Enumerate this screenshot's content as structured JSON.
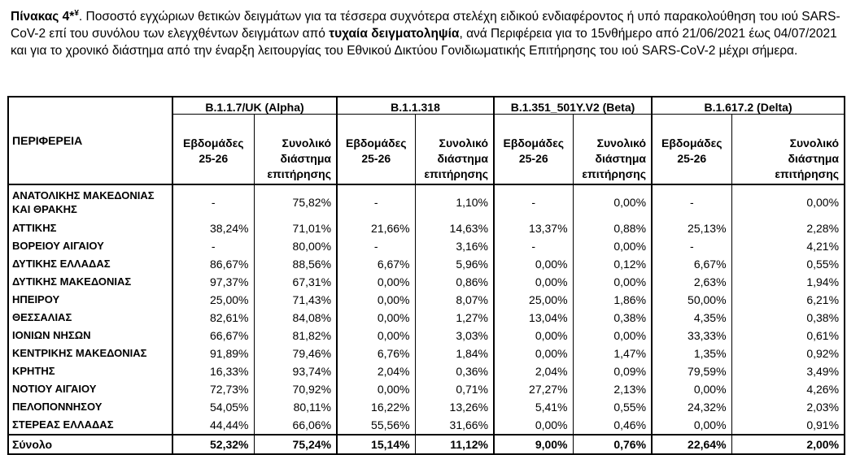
{
  "caption": {
    "label": "Πίνακας 4*",
    "sup": "¥",
    "text_part1": ". Ποσοστό εγχώριων θετικών δειγμάτων για τα τέσσερα συχνότερα στελέχη ειδικού ενδιαφέροντος ή υπό παρακολούθηση του ιού SARS-CoV-2 επί του συνόλου των ελεγχθέντων δειγμάτων από ",
    "bold_phrase": "τυχαία δειγματοληψία",
    "text_part2": ", ανά Περιφέρεια για το 15νθήμερο από 21/06/2021 έως 04/07/2021 και για το χρονικό διάστημα από την έναρξη λειτουργίας του Εθνικού Δικτύου Γονιδιωματικής Επιτήρησης του ιού SARS-CoV-2 μέχρι σήμερα."
  },
  "table": {
    "region_header": "ΠΕΡΙΦΕΡΕΙΑ",
    "variants": [
      "B.1.1.7/UK  (Alpha)",
      "B.1.1.318",
      "B.1.351_501Y.V2 (Beta)",
      "B.1.617.2 (Delta)"
    ],
    "sub_weeks_l1": "Εβδομάδες",
    "sub_weeks_l2": "25-26",
    "sub_total_l1": "Συνολικό",
    "sub_total_l2": "διάστημα",
    "sub_total_l3": "επιτήρησης",
    "rows": [
      {
        "region": "ΑΝΑΤΟΛΙΚΗΣ ΜΑΚΕΔΟΝΙΑΣ ΚΑΙ ΘΡΑΚΗΣ",
        "vals": [
          "-",
          "75,82%",
          "-",
          "1,10%",
          "-",
          "0,00%",
          "-",
          "0,00%"
        ]
      },
      {
        "region": "ΑΤΤΙΚΗΣ",
        "vals": [
          "38,24%",
          "71,01%",
          "21,66%",
          "14,63%",
          "13,37%",
          "0,88%",
          "25,13%",
          "2,28%"
        ]
      },
      {
        "region": "ΒΟΡΕΙΟΥ ΑΙΓΑΙΟΥ",
        "vals": [
          "-",
          "80,00%",
          "-",
          "3,16%",
          "-",
          "0,00%",
          "-",
          "4,21%"
        ]
      },
      {
        "region": "ΔΥΤΙΚΗΣ ΕΛΛΑΔΑΣ",
        "vals": [
          "86,67%",
          "88,56%",
          "6,67%",
          "5,96%",
          "0,00%",
          "0,12%",
          "6,67%",
          "0,55%"
        ]
      },
      {
        "region": "ΔΥΤΙΚΗΣ ΜΑΚΕΔΟΝΙΑΣ",
        "vals": [
          "97,37%",
          "67,31%",
          "0,00%",
          "0,86%",
          "0,00%",
          "0,00%",
          "2,63%",
          "1,94%"
        ]
      },
      {
        "region": "ΗΠΕΙΡΟΥ",
        "vals": [
          "25,00%",
          "71,43%",
          "0,00%",
          "8,07%",
          "25,00%",
          "1,86%",
          "50,00%",
          "6,21%"
        ]
      },
      {
        "region": "ΘΕΣΣΑΛΙΑΣ",
        "vals": [
          "82,61%",
          "84,08%",
          "0,00%",
          "1,27%",
          "13,04%",
          "0,38%",
          "4,35%",
          "0,38%"
        ]
      },
      {
        "region": "ΙΟΝΙΩΝ ΝΗΣΩΝ",
        "vals": [
          "66,67%",
          "81,82%",
          "0,00%",
          "3,03%",
          "0,00%",
          "0,00%",
          "33,33%",
          "0,61%"
        ]
      },
      {
        "region": "ΚΕΝΤΡΙΚΗΣ ΜΑΚΕΔΟΝΙΑΣ",
        "vals": [
          "91,89%",
          "79,46%",
          "6,76%",
          "1,84%",
          "0,00%",
          "1,47%",
          "1,35%",
          "0,92%"
        ]
      },
      {
        "region": "ΚΡΗΤΗΣ",
        "vals": [
          "16,33%",
          "93,74%",
          "2,04%",
          "0,36%",
          "2,04%",
          "0,09%",
          "79,59%",
          "3,49%"
        ]
      },
      {
        "region": "ΝΟΤΙΟΥ ΑΙΓΑΙΟΥ",
        "vals": [
          "72,73%",
          "70,92%",
          "0,00%",
          "0,71%",
          "27,27%",
          "2,13%",
          "0,00%",
          "4,26%"
        ]
      },
      {
        "region": "ΠΕΛΟΠΟΝΝΗΣΟΥ",
        "vals": [
          "54,05%",
          "80,11%",
          "16,22%",
          "13,26%",
          "5,41%",
          "0,55%",
          "24,32%",
          "2,03%"
        ]
      },
      {
        "region": "ΣΤΕΡΕΑΣ ΕΛΛΑΔΑΣ",
        "vals": [
          "44,44%",
          "66,06%",
          "55,56%",
          "31,66%",
          "0,00%",
          "0,46%",
          "0,00%",
          "0,91%"
        ]
      }
    ],
    "total": {
      "label": "Σύνολο",
      "vals": [
        "52,32%",
        "75,24%",
        "15,14%",
        "11,12%",
        "9,00%",
        "0,76%",
        "22,64%",
        "2,00%"
      ]
    }
  }
}
